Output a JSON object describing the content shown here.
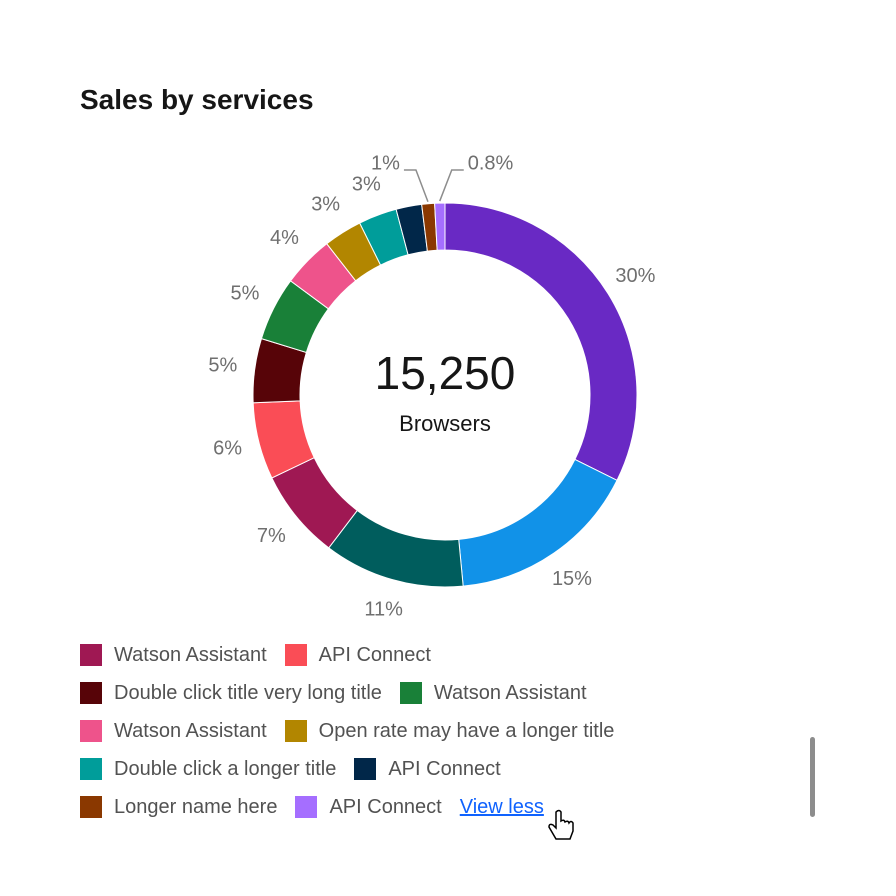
{
  "chart_data": {
    "type": "donut",
    "title": "Sales by services",
    "center_label": "15,250",
    "center_caption": "Browsers",
    "categories": [
      null,
      null,
      null,
      "Watson Assistant",
      "API Connect",
      "Double click title very long title",
      "Watson Assistant",
      "Watson Assistant",
      "Open rate may have a longer title",
      "Double click a longer title",
      "API Connect",
      "Longer name here",
      "API Connect"
    ],
    "values": [
      30,
      15,
      11,
      7,
      6,
      5,
      5,
      4,
      3,
      3,
      2,
      1,
      0.8
    ],
    "value_labels": [
      "30%",
      "15%",
      "11%",
      "7%",
      "6%",
      "5%",
      "5%",
      "4%",
      "3%",
      "3%",
      null,
      "1%",
      "0.8%"
    ],
    "colors": [
      "#6929c4",
      "#1192e8",
      "#005d5d",
      "#9f1853",
      "#fa4d56",
      "#570408",
      "#198038",
      "#ee538b",
      "#b28600",
      "#009d9a",
      "#012749",
      "#8a3800",
      "#a56eff"
    ],
    "legend_action": "View less"
  }
}
